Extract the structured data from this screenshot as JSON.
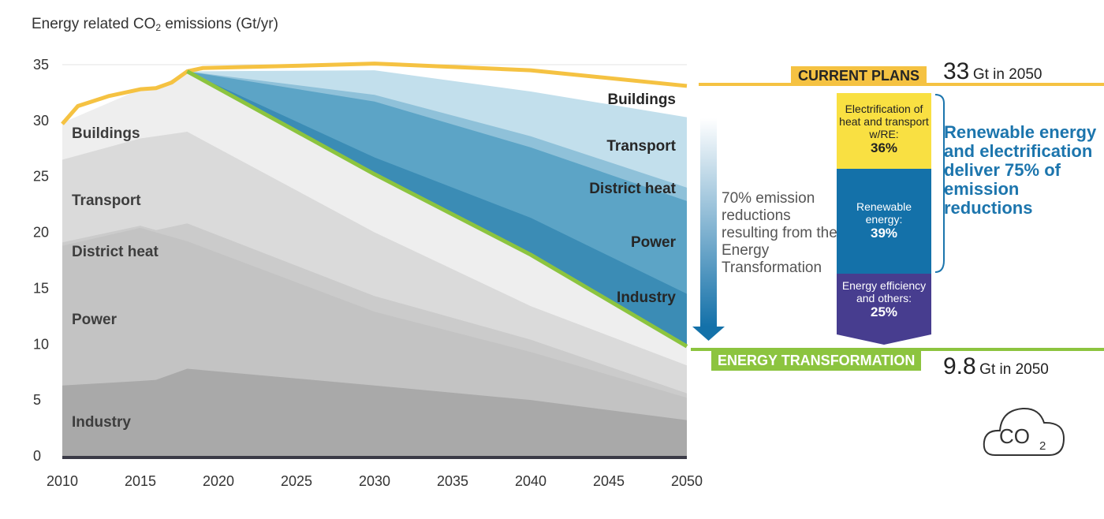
{
  "chart_data": {
    "type": "area",
    "ylabel": "Energy related CO₂ emissions (Gt/yr)",
    "ylabel_prefix": "Energy related CO",
    "ylabel_sub": "2",
    "ylabel_suffix": " emissions (Gt/yr)",
    "ylim": [
      0,
      35
    ],
    "yticks": [
      0,
      5,
      10,
      15,
      20,
      25,
      30,
      35
    ],
    "xlim": [
      2010,
      2050
    ],
    "xticks": [
      2010,
      2015,
      2020,
      2025,
      2030,
      2035,
      2040,
      2045,
      2050
    ],
    "historical_stack_tops": {
      "x": [
        2010,
        2015,
        2016,
        2018
      ],
      "industry": [
        6.3,
        6.7,
        6.8,
        7.8
      ],
      "power": [
        18.8,
        20.4,
        20.0,
        20.8
      ],
      "district_heat": [
        19.1,
        20.6,
        20.2,
        21.0
      ],
      "transport": [
        26.5,
        28.4,
        28.6,
        29.5
      ],
      "buildings": [
        29.8,
        32.8,
        32.9,
        34.4
      ]
    },
    "projection_x": [
      2018,
      2030,
      2040,
      2050
    ],
    "energy_transformation_stack_tops": {
      "industry": [
        7.8,
        6.3,
        5.0,
        3.2
      ],
      "power": [
        19.2,
        12.9,
        9.3,
        5.2
      ],
      "district_heat": [
        20.8,
        14.3,
        10.4,
        5.6
      ],
      "transport": [
        29.0,
        20.0,
        13.4,
        8.1
      ],
      "buildings": [
        34.4,
        25.2,
        18.0,
        9.8
      ]
    },
    "current_plans_stack_tops": {
      "industry": [
        34.4,
        25.2,
        18.0,
        9.8
      ],
      "power": [
        34.4,
        26.7,
        21.3,
        14.5
      ],
      "district_heat": [
        34.4,
        31.7,
        27.6,
        22.8
      ],
      "transport": [
        34.4,
        32.3,
        28.6,
        24.0
      ],
      "buildings": [
        34.4,
        34.5,
        32.6,
        30.3
      ]
    },
    "current_plans_line": {
      "x": [
        2010,
        2011,
        2013,
        2015,
        2016,
        2017,
        2018,
        2019,
        2025,
        2030,
        2040,
        2050
      ],
      "y": [
        29.7,
        31.3,
        32.2,
        32.8,
        32.9,
        33.4,
        34.4,
        34.7,
        34.9,
        35.1,
        34.5,
        33.1
      ]
    },
    "energy_transformation_line": {
      "x": [
        2018,
        2030,
        2040,
        2050
      ],
      "y": [
        34.4,
        25.2,
        18.0,
        9.8
      ]
    },
    "sector_labels_left": [
      "Buildings",
      "Transport",
      "District heat",
      "Power",
      "Industry"
    ],
    "sector_labels_right": [
      "Buildings",
      "Transport",
      "District heat",
      "Power",
      "Industry"
    ],
    "annotations": {
      "current_plans": "CURRENT PLANS",
      "current_plans_value": "33",
      "current_plans_unit": "Gt in 2050",
      "energy_transformation": "ENERGY TRANSFORMATION",
      "energy_transformation_value": "9.8",
      "energy_transformation_unit": "Gt in 2050",
      "reduction_note": "70% emission reductions resulting from the Energy Transformation",
      "breakdown": [
        {
          "label": "Electrification of heat and transport w/RE:",
          "value": "36%",
          "color": "#f9e042"
        },
        {
          "label": "Renewable energy:",
          "value": "39%",
          "color": "#1471a9"
        },
        {
          "label": "Energy efficiency and others:",
          "value": "25%",
          "color": "#473d8f"
        }
      ],
      "summary": "Renewable energy and electrification deliver 75% of emission reductions",
      "icon_text": "CO",
      "icon_sub": "2"
    },
    "colors": {
      "industry": "#a9a9a9",
      "power": "#c3c3c3",
      "district_heat": "#cbcbcb",
      "transport": "#dadada",
      "buildings": "#eeeeee",
      "cp_industry": "#0f6e9f",
      "cp_power": "#3b8cb5",
      "cp_district_heat": "#5ca4c6",
      "cp_transport": "#8fc1d9",
      "cp_buildings": "#c2dfec",
      "current_plans_line": "#f5c242",
      "energy_transformation_line": "#8cc43f"
    }
  }
}
